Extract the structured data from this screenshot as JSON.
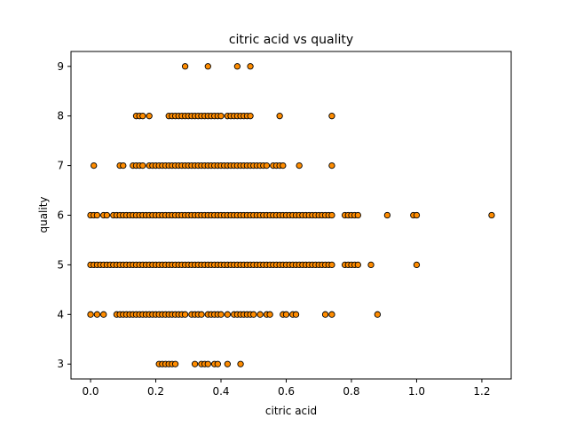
{
  "chart_data": {
    "type": "scatter",
    "title": "citric acid vs quality",
    "xlabel": "citric acid",
    "ylabel": "quality",
    "xlim": [
      -0.06,
      1.29
    ],
    "ylim": [
      2.7,
      9.3
    ],
    "xticks": [
      0.0,
      0.2,
      0.4,
      0.6,
      0.8,
      1.0,
      1.2
    ],
    "xtick_labels": [
      "0.0",
      "0.2",
      "0.4",
      "0.6",
      "0.8",
      "1.0",
      "1.2"
    ],
    "yticks": [
      3,
      4,
      5,
      6,
      7,
      8,
      9
    ],
    "ytick_labels": [
      "3",
      "4",
      "5",
      "6",
      "7",
      "8",
      "9"
    ],
    "grid": false,
    "marker_color": "#ff8c00",
    "marker_edge_color": "#000000",
    "series": [
      {
        "points": [
          [
            0.21,
            3
          ],
          [
            0.22,
            3
          ],
          [
            0.23,
            3
          ],
          [
            0.24,
            3
          ],
          [
            0.25,
            3
          ],
          [
            0.26,
            3
          ],
          [
            0.32,
            3
          ],
          [
            0.34,
            3
          ],
          [
            0.35,
            3
          ],
          [
            0.36,
            3
          ],
          [
            0.38,
            3
          ],
          [
            0.39,
            3
          ],
          [
            0.42,
            3
          ],
          [
            0.46,
            3
          ],
          [
            0.0,
            4
          ],
          [
            0.02,
            4
          ],
          [
            0.04,
            4
          ],
          [
            0.08,
            4
          ],
          [
            0.09,
            4
          ],
          [
            0.1,
            4
          ],
          [
            0.11,
            4
          ],
          [
            0.12,
            4
          ],
          [
            0.13,
            4
          ],
          [
            0.14,
            4
          ],
          [
            0.15,
            4
          ],
          [
            0.16,
            4
          ],
          [
            0.17,
            4
          ],
          [
            0.18,
            4
          ],
          [
            0.19,
            4
          ],
          [
            0.2,
            4
          ],
          [
            0.21,
            4
          ],
          [
            0.22,
            4
          ],
          [
            0.23,
            4
          ],
          [
            0.24,
            4
          ],
          [
            0.25,
            4
          ],
          [
            0.26,
            4
          ],
          [
            0.27,
            4
          ],
          [
            0.28,
            4
          ],
          [
            0.29,
            4
          ],
          [
            0.31,
            4
          ],
          [
            0.32,
            4
          ],
          [
            0.33,
            4
          ],
          [
            0.34,
            4
          ],
          [
            0.36,
            4
          ],
          [
            0.37,
            4
          ],
          [
            0.38,
            4
          ],
          [
            0.39,
            4
          ],
          [
            0.4,
            4
          ],
          [
            0.42,
            4
          ],
          [
            0.44,
            4
          ],
          [
            0.45,
            4
          ],
          [
            0.46,
            4
          ],
          [
            0.47,
            4
          ],
          [
            0.48,
            4
          ],
          [
            0.49,
            4
          ],
          [
            0.5,
            4
          ],
          [
            0.52,
            4
          ],
          [
            0.54,
            4
          ],
          [
            0.55,
            4
          ],
          [
            0.59,
            4
          ],
          [
            0.6,
            4
          ],
          [
            0.62,
            4
          ],
          [
            0.63,
            4
          ],
          [
            0.72,
            4
          ],
          [
            0.74,
            4
          ],
          [
            0.88,
            4
          ],
          [
            0.0,
            5
          ],
          [
            0.01,
            5
          ],
          [
            0.02,
            5
          ],
          [
            0.03,
            5
          ],
          [
            0.04,
            5
          ],
          [
            0.05,
            5
          ],
          [
            0.06,
            5
          ],
          [
            0.07,
            5
          ],
          [
            0.08,
            5
          ],
          [
            0.09,
            5
          ],
          [
            0.1,
            5
          ],
          [
            0.11,
            5
          ],
          [
            0.12,
            5
          ],
          [
            0.13,
            5
          ],
          [
            0.14,
            5
          ],
          [
            0.15,
            5
          ],
          [
            0.16,
            5
          ],
          [
            0.17,
            5
          ],
          [
            0.18,
            5
          ],
          [
            0.19,
            5
          ],
          [
            0.2,
            5
          ],
          [
            0.21,
            5
          ],
          [
            0.22,
            5
          ],
          [
            0.23,
            5
          ],
          [
            0.24,
            5
          ],
          [
            0.25,
            5
          ],
          [
            0.26,
            5
          ],
          [
            0.27,
            5
          ],
          [
            0.28,
            5
          ],
          [
            0.29,
            5
          ],
          [
            0.3,
            5
          ],
          [
            0.31,
            5
          ],
          [
            0.32,
            5
          ],
          [
            0.33,
            5
          ],
          [
            0.34,
            5
          ],
          [
            0.35,
            5
          ],
          [
            0.36,
            5
          ],
          [
            0.37,
            5
          ],
          [
            0.38,
            5
          ],
          [
            0.39,
            5
          ],
          [
            0.4,
            5
          ],
          [
            0.41,
            5
          ],
          [
            0.42,
            5
          ],
          [
            0.43,
            5
          ],
          [
            0.44,
            5
          ],
          [
            0.45,
            5
          ],
          [
            0.46,
            5
          ],
          [
            0.47,
            5
          ],
          [
            0.48,
            5
          ],
          [
            0.49,
            5
          ],
          [
            0.5,
            5
          ],
          [
            0.51,
            5
          ],
          [
            0.52,
            5
          ],
          [
            0.53,
            5
          ],
          [
            0.54,
            5
          ],
          [
            0.55,
            5
          ],
          [
            0.56,
            5
          ],
          [
            0.57,
            5
          ],
          [
            0.58,
            5
          ],
          [
            0.59,
            5
          ],
          [
            0.6,
            5
          ],
          [
            0.61,
            5
          ],
          [
            0.62,
            5
          ],
          [
            0.63,
            5
          ],
          [
            0.64,
            5
          ],
          [
            0.65,
            5
          ],
          [
            0.66,
            5
          ],
          [
            0.67,
            5
          ],
          [
            0.68,
            5
          ],
          [
            0.69,
            5
          ],
          [
            0.7,
            5
          ],
          [
            0.71,
            5
          ],
          [
            0.72,
            5
          ],
          [
            0.73,
            5
          ],
          [
            0.74,
            5
          ],
          [
            0.78,
            5
          ],
          [
            0.79,
            5
          ],
          [
            0.8,
            5
          ],
          [
            0.81,
            5
          ],
          [
            0.82,
            5
          ],
          [
            0.86,
            5
          ],
          [
            1.0,
            5
          ],
          [
            0.0,
            6
          ],
          [
            0.01,
            6
          ],
          [
            0.02,
            6
          ],
          [
            0.04,
            6
          ],
          [
            0.05,
            6
          ],
          [
            0.07,
            6
          ],
          [
            0.08,
            6
          ],
          [
            0.09,
            6
          ],
          [
            0.1,
            6
          ],
          [
            0.11,
            6
          ],
          [
            0.12,
            6
          ],
          [
            0.13,
            6
          ],
          [
            0.14,
            6
          ],
          [
            0.15,
            6
          ],
          [
            0.16,
            6
          ],
          [
            0.17,
            6
          ],
          [
            0.18,
            6
          ],
          [
            0.19,
            6
          ],
          [
            0.2,
            6
          ],
          [
            0.21,
            6
          ],
          [
            0.22,
            6
          ],
          [
            0.23,
            6
          ],
          [
            0.24,
            6
          ],
          [
            0.25,
            6
          ],
          [
            0.26,
            6
          ],
          [
            0.27,
            6
          ],
          [
            0.28,
            6
          ],
          [
            0.29,
            6
          ],
          [
            0.3,
            6
          ],
          [
            0.31,
            6
          ],
          [
            0.32,
            6
          ],
          [
            0.33,
            6
          ],
          [
            0.34,
            6
          ],
          [
            0.35,
            6
          ],
          [
            0.36,
            6
          ],
          [
            0.37,
            6
          ],
          [
            0.38,
            6
          ],
          [
            0.39,
            6
          ],
          [
            0.4,
            6
          ],
          [
            0.41,
            6
          ],
          [
            0.42,
            6
          ],
          [
            0.43,
            6
          ],
          [
            0.44,
            6
          ],
          [
            0.45,
            6
          ],
          [
            0.46,
            6
          ],
          [
            0.47,
            6
          ],
          [
            0.48,
            6
          ],
          [
            0.49,
            6
          ],
          [
            0.5,
            6
          ],
          [
            0.51,
            6
          ],
          [
            0.52,
            6
          ],
          [
            0.53,
            6
          ],
          [
            0.54,
            6
          ],
          [
            0.55,
            6
          ],
          [
            0.56,
            6
          ],
          [
            0.57,
            6
          ],
          [
            0.58,
            6
          ],
          [
            0.59,
            6
          ],
          [
            0.6,
            6
          ],
          [
            0.61,
            6
          ],
          [
            0.62,
            6
          ],
          [
            0.63,
            6
          ],
          [
            0.64,
            6
          ],
          [
            0.65,
            6
          ],
          [
            0.66,
            6
          ],
          [
            0.67,
            6
          ],
          [
            0.68,
            6
          ],
          [
            0.69,
            6
          ],
          [
            0.7,
            6
          ],
          [
            0.71,
            6
          ],
          [
            0.72,
            6
          ],
          [
            0.73,
            6
          ],
          [
            0.74,
            6
          ],
          [
            0.78,
            6
          ],
          [
            0.79,
            6
          ],
          [
            0.8,
            6
          ],
          [
            0.81,
            6
          ],
          [
            0.82,
            6
          ],
          [
            0.91,
            6
          ],
          [
            0.99,
            6
          ],
          [
            1.0,
            6
          ],
          [
            1.23,
            6
          ],
          [
            0.01,
            7
          ],
          [
            0.09,
            7
          ],
          [
            0.1,
            7
          ],
          [
            0.13,
            7
          ],
          [
            0.14,
            7
          ],
          [
            0.15,
            7
          ],
          [
            0.16,
            7
          ],
          [
            0.18,
            7
          ],
          [
            0.19,
            7
          ],
          [
            0.2,
            7
          ],
          [
            0.21,
            7
          ],
          [
            0.22,
            7
          ],
          [
            0.23,
            7
          ],
          [
            0.24,
            7
          ],
          [
            0.25,
            7
          ],
          [
            0.26,
            7
          ],
          [
            0.27,
            7
          ],
          [
            0.28,
            7
          ],
          [
            0.29,
            7
          ],
          [
            0.3,
            7
          ],
          [
            0.31,
            7
          ],
          [
            0.32,
            7
          ],
          [
            0.33,
            7
          ],
          [
            0.34,
            7
          ],
          [
            0.35,
            7
          ],
          [
            0.36,
            7
          ],
          [
            0.37,
            7
          ],
          [
            0.38,
            7
          ],
          [
            0.39,
            7
          ],
          [
            0.4,
            7
          ],
          [
            0.41,
            7
          ],
          [
            0.42,
            7
          ],
          [
            0.43,
            7
          ],
          [
            0.44,
            7
          ],
          [
            0.45,
            7
          ],
          [
            0.46,
            7
          ],
          [
            0.47,
            7
          ],
          [
            0.48,
            7
          ],
          [
            0.49,
            7
          ],
          [
            0.5,
            7
          ],
          [
            0.51,
            7
          ],
          [
            0.52,
            7
          ],
          [
            0.53,
            7
          ],
          [
            0.54,
            7
          ],
          [
            0.56,
            7
          ],
          [
            0.57,
            7
          ],
          [
            0.58,
            7
          ],
          [
            0.59,
            7
          ],
          [
            0.64,
            7
          ],
          [
            0.74,
            7
          ],
          [
            0.14,
            8
          ],
          [
            0.15,
            8
          ],
          [
            0.16,
            8
          ],
          [
            0.18,
            8
          ],
          [
            0.24,
            8
          ],
          [
            0.25,
            8
          ],
          [
            0.26,
            8
          ],
          [
            0.27,
            8
          ],
          [
            0.28,
            8
          ],
          [
            0.29,
            8
          ],
          [
            0.3,
            8
          ],
          [
            0.31,
            8
          ],
          [
            0.32,
            8
          ],
          [
            0.33,
            8
          ],
          [
            0.34,
            8
          ],
          [
            0.35,
            8
          ],
          [
            0.36,
            8
          ],
          [
            0.37,
            8
          ],
          [
            0.38,
            8
          ],
          [
            0.39,
            8
          ],
          [
            0.4,
            8
          ],
          [
            0.42,
            8
          ],
          [
            0.43,
            8
          ],
          [
            0.44,
            8
          ],
          [
            0.45,
            8
          ],
          [
            0.46,
            8
          ],
          [
            0.47,
            8
          ],
          [
            0.48,
            8
          ],
          [
            0.49,
            8
          ],
          [
            0.58,
            8
          ],
          [
            0.74,
            8
          ],
          [
            0.29,
            9
          ],
          [
            0.36,
            9
          ],
          [
            0.45,
            9
          ],
          [
            0.49,
            9
          ]
        ]
      }
    ]
  }
}
